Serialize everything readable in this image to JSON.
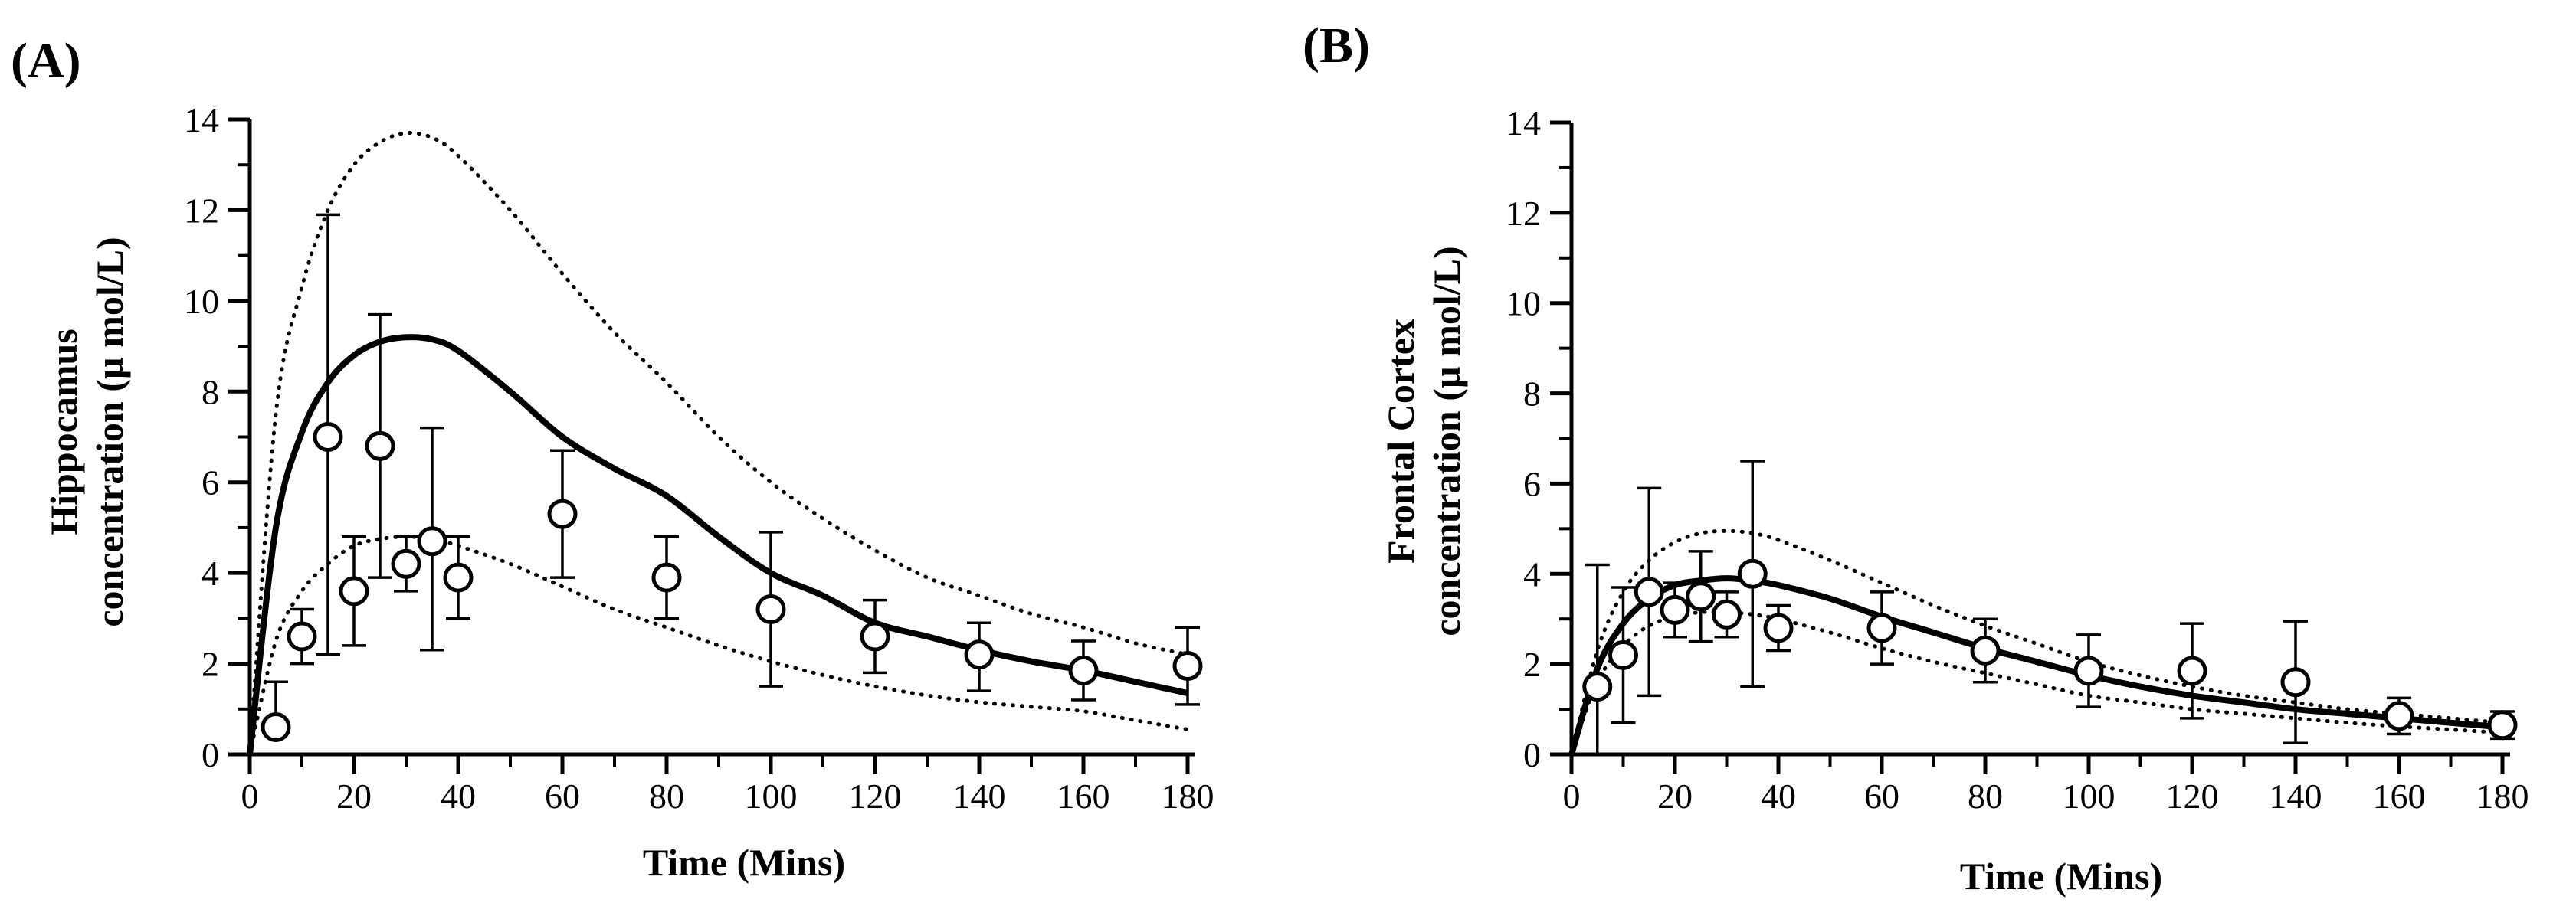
{
  "chart_data": [
    {
      "type": "line",
      "panel_label": "(A)",
      "xlabel": "Time  (Mins)",
      "ylabel_lines": [
        "Hippocamus",
        "concentration  (µ mol/L)"
      ],
      "xlim": [
        0,
        180
      ],
      "ylim": [
        0,
        14
      ],
      "x_ticks": [
        0,
        20,
        40,
        60,
        80,
        100,
        120,
        140,
        160,
        180
      ],
      "y_ticks": [
        0,
        2,
        4,
        6,
        8,
        10,
        12,
        14
      ],
      "series": [
        {
          "name": "median-prediction",
          "style": "solid",
          "x": [
            0,
            5,
            10,
            15,
            20,
            25,
            30,
            35,
            40,
            50,
            60,
            70,
            80,
            90,
            100,
            110,
            120,
            130,
            140,
            150,
            160,
            170,
            180
          ],
          "y": [
            0,
            5.0,
            7.1,
            8.2,
            8.8,
            9.1,
            9.2,
            9.15,
            8.9,
            8.0,
            7.0,
            6.3,
            5.7,
            4.8,
            4.0,
            3.5,
            2.9,
            2.6,
            2.3,
            2.05,
            1.85,
            1.6,
            1.35
          ]
        },
        {
          "name": "upper-prediction",
          "style": "dotted",
          "x": [
            0,
            5,
            10,
            15,
            20,
            25,
            30,
            35,
            40,
            50,
            60,
            70,
            80,
            90,
            100,
            110,
            120,
            130,
            140,
            150,
            160,
            170,
            180
          ],
          "y": [
            0,
            7.5,
            10.3,
            12.0,
            13.0,
            13.5,
            13.7,
            13.6,
            13.2,
            12.0,
            10.6,
            9.3,
            8.2,
            7.0,
            6.0,
            5.2,
            4.5,
            3.9,
            3.5,
            3.1,
            2.8,
            2.45,
            2.2
          ]
        },
        {
          "name": "lower-prediction",
          "style": "dotted",
          "x": [
            0,
            5,
            10,
            15,
            20,
            25,
            30,
            35,
            40,
            50,
            60,
            70,
            80,
            90,
            100,
            110,
            120,
            130,
            140,
            150,
            160,
            170,
            180
          ],
          "y": [
            0,
            2.5,
            3.6,
            4.2,
            4.6,
            4.75,
            4.8,
            4.75,
            4.6,
            4.2,
            3.7,
            3.2,
            2.8,
            2.4,
            2.05,
            1.75,
            1.5,
            1.3,
            1.15,
            1.05,
            0.95,
            0.75,
            0.55
          ]
        }
      ],
      "observed": [
        {
          "x": 5,
          "y": 0.6,
          "err_low": 0.6,
          "err_high": 1.6
        },
        {
          "x": 10,
          "y": 2.6,
          "err_low": 2.0,
          "err_high": 3.2
        },
        {
          "x": 15,
          "y": 7.0,
          "err_low": 2.2,
          "err_high": 11.9
        },
        {
          "x": 20,
          "y": 3.6,
          "err_low": 2.4,
          "err_high": 4.8
        },
        {
          "x": 25,
          "y": 6.8,
          "err_low": 3.9,
          "err_high": 9.7
        },
        {
          "x": 30,
          "y": 4.2,
          "err_low": 3.6,
          "err_high": 4.8
        },
        {
          "x": 35,
          "y": 4.7,
          "err_low": 2.3,
          "err_high": 7.2
        },
        {
          "x": 40,
          "y": 3.9,
          "err_low": 3.0,
          "err_high": 4.8
        },
        {
          "x": 60,
          "y": 5.3,
          "err_low": 3.9,
          "err_high": 6.7
        },
        {
          "x": 80,
          "y": 3.9,
          "err_low": 3.0,
          "err_high": 4.8
        },
        {
          "x": 100,
          "y": 3.2,
          "err_low": 1.5,
          "err_high": 4.9
        },
        {
          "x": 120,
          "y": 2.6,
          "err_low": 1.8,
          "err_high": 3.4
        },
        {
          "x": 140,
          "y": 2.2,
          "err_low": 1.4,
          "err_high": 2.9
        },
        {
          "x": 160,
          "y": 1.85,
          "err_low": 1.2,
          "err_high": 2.5
        },
        {
          "x": 180,
          "y": 1.95,
          "err_low": 1.1,
          "err_high": 2.8
        }
      ]
    },
    {
      "type": "line",
      "panel_label": "(B)",
      "xlabel": "Time  (Mins)",
      "ylabel_lines": [
        "Frontal Cortex",
        "concentration  (µ mol/L)"
      ],
      "xlim": [
        0,
        180
      ],
      "ylim": [
        0,
        14
      ],
      "x_ticks": [
        0,
        20,
        40,
        60,
        80,
        100,
        120,
        140,
        160,
        180
      ],
      "y_ticks": [
        0,
        2,
        4,
        6,
        8,
        10,
        12,
        14
      ],
      "series": [
        {
          "name": "median-prediction",
          "style": "solid",
          "x": [
            0,
            5,
            10,
            15,
            20,
            25,
            30,
            35,
            40,
            50,
            60,
            70,
            80,
            90,
            100,
            110,
            120,
            130,
            140,
            150,
            160,
            170,
            180
          ],
          "y": [
            0,
            1.9,
            2.9,
            3.45,
            3.75,
            3.85,
            3.9,
            3.85,
            3.75,
            3.45,
            3.05,
            2.7,
            2.35,
            2.05,
            1.75,
            1.5,
            1.3,
            1.15,
            1.0,
            0.9,
            0.8,
            0.7,
            0.6
          ]
        },
        {
          "name": "upper-prediction",
          "style": "dotted",
          "x": [
            0,
            5,
            10,
            15,
            20,
            25,
            30,
            35,
            40,
            50,
            60,
            70,
            80,
            90,
            100,
            110,
            120,
            130,
            140,
            150,
            160,
            170,
            180
          ],
          "y": [
            0,
            2.3,
            3.6,
            4.3,
            4.7,
            4.9,
            4.95,
            4.9,
            4.75,
            4.3,
            3.8,
            3.3,
            2.85,
            2.45,
            2.05,
            1.75,
            1.5,
            1.3,
            1.15,
            1.0,
            0.9,
            0.8,
            0.7
          ]
        },
        {
          "name": "lower-prediction",
          "style": "dotted",
          "x": [
            0,
            5,
            10,
            15,
            20,
            25,
            30,
            35,
            40,
            50,
            60,
            70,
            80,
            90,
            100,
            110,
            120,
            130,
            140,
            150,
            160,
            170,
            180
          ],
          "y": [
            0,
            1.6,
            2.4,
            2.85,
            3.05,
            3.15,
            3.15,
            3.1,
            3.0,
            2.7,
            2.35,
            2.05,
            1.8,
            1.55,
            1.3,
            1.15,
            1.0,
            0.9,
            0.8,
            0.7,
            0.62,
            0.55,
            0.48
          ]
        }
      ],
      "observed": [
        {
          "x": 5,
          "y": 1.5,
          "err_low": 0.0,
          "err_high": 4.2
        },
        {
          "x": 10,
          "y": 2.2,
          "err_low": 0.7,
          "err_high": 3.7
        },
        {
          "x": 15,
          "y": 3.6,
          "err_low": 1.3,
          "err_high": 5.9
        },
        {
          "x": 20,
          "y": 3.2,
          "err_low": 2.6,
          "err_high": 3.8
        },
        {
          "x": 25,
          "y": 3.5,
          "err_low": 2.5,
          "err_high": 4.5
        },
        {
          "x": 30,
          "y": 3.1,
          "err_low": 2.6,
          "err_high": 3.6
        },
        {
          "x": 35,
          "y": 4.0,
          "err_low": 1.5,
          "err_high": 6.5
        },
        {
          "x": 40,
          "y": 2.8,
          "err_low": 2.3,
          "err_high": 3.3
        },
        {
          "x": 60,
          "y": 2.8,
          "err_low": 2.0,
          "err_high": 3.6
        },
        {
          "x": 80,
          "y": 2.3,
          "err_low": 1.6,
          "err_high": 3.0
        },
        {
          "x": 100,
          "y": 1.85,
          "err_low": 1.05,
          "err_high": 2.65
        },
        {
          "x": 120,
          "y": 1.85,
          "err_low": 0.8,
          "err_high": 2.9
        },
        {
          "x": 140,
          "y": 1.6,
          "err_low": 0.25,
          "err_high": 2.95
        },
        {
          "x": 160,
          "y": 0.85,
          "err_low": 0.45,
          "err_high": 1.25
        },
        {
          "x": 180,
          "y": 0.65,
          "err_low": 0.35,
          "err_high": 0.95
        }
      ]
    }
  ]
}
